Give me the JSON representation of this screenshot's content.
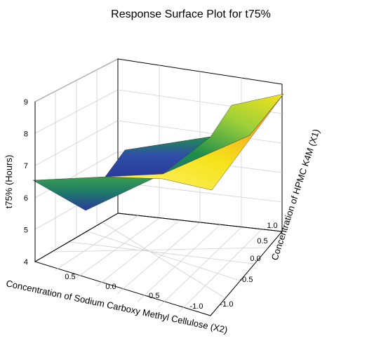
{
  "chart_data": {
    "type": "surface",
    "title": "Response Surface Plot for t75%",
    "zlabel": "t75% (Hours)",
    "xlabel": "Concentration of Sodium Carboxy Methyl Cellulose (X2)",
    "ylabel": "Concentration of HPMC K4M (X1)",
    "zlim": [
      4,
      9
    ],
    "x2_ticks": [
      "0.5",
      "0.0",
      "-0.5",
      "-1.0"
    ],
    "x1_ticks": [
      "1.0",
      "0.5",
      "0.0",
      "-0.5",
      "-1.0"
    ],
    "z_ticks": [
      "4",
      "5",
      "6",
      "7",
      "8",
      "9"
    ],
    "grid": true,
    "colormap": [
      "#2b3a9b",
      "#1f8f4a",
      "#f5e21a",
      "#f08a1c"
    ],
    "surface": [
      {
        "x2": 1.0,
        "x1": -1.0,
        "t75": 6.7
      },
      {
        "x2": -1.0,
        "x1": -1.0,
        "t75": 6.3
      },
      {
        "x2": 1.0,
        "x1": 1.0,
        "t75": 7.3
      },
      {
        "x2": -1.0,
        "x1": 1.0,
        "t75": 9.0
      },
      {
        "x2": 0.0,
        "x1": 0.0,
        "t75": 6.1
      },
      {
        "x2": 0.5,
        "x1": -0.5,
        "t75": 5.7
      }
    ]
  }
}
